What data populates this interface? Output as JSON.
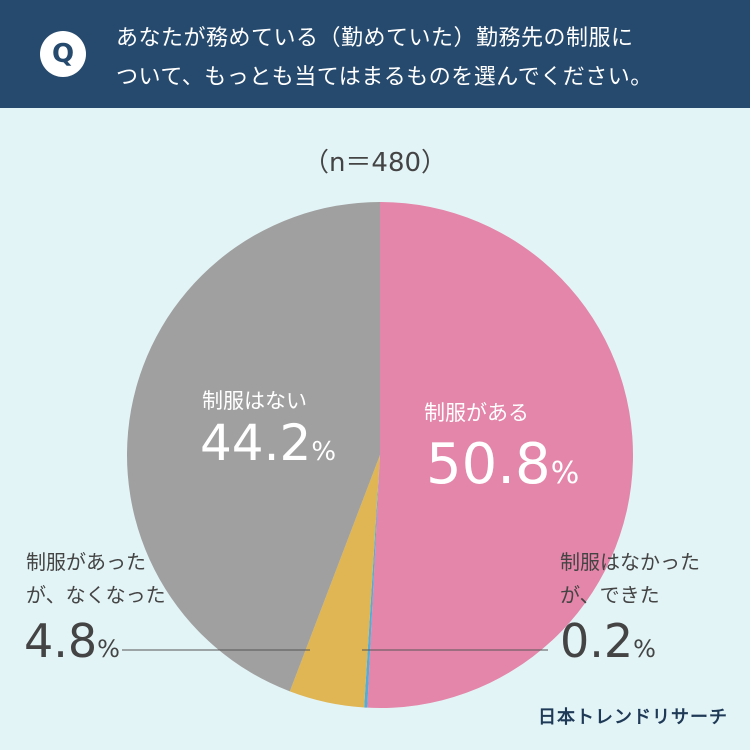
{
  "question": {
    "badge": "Q",
    "line1": "あなたが務めている（勤めていた）勤務先の制服に",
    "line2": "ついて、もっとも当てはまるものを選んでください。"
  },
  "sample_size": "（n＝480）",
  "brand": "日本トレンドリサーチ",
  "chart_data": {
    "type": "pie",
    "slices": [
      {
        "label": "制服がある",
        "value": 50.8,
        "color": "#e486a9"
      },
      {
        "label": "制服はなかったが、できた",
        "label_line1": "制服はなかった",
        "label_line2": "が、できた",
        "value": 0.2,
        "color": "#55acd6"
      },
      {
        "label": "制服があったが、なくなった",
        "label_line1": "制服があった",
        "label_line2": "が、なくなった",
        "value": 4.8,
        "color": "#e0b553"
      },
      {
        "label": "制服はない",
        "value": 44.2,
        "color": "#a0a0a0"
      }
    ],
    "unit": "%"
  }
}
